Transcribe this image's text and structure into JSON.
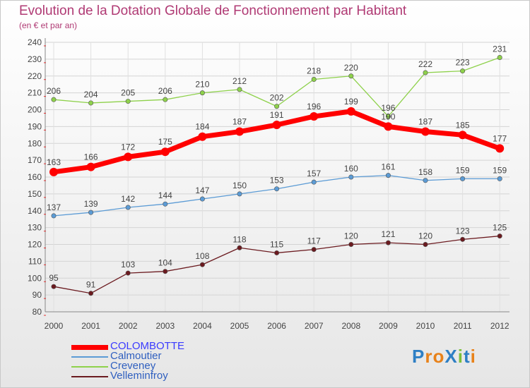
{
  "title": "Evolution de la Dotation Globale de Fonctionnement par Habitant",
  "subtitle": "(en € et par an)",
  "logo": {
    "text": "ProXiti",
    "letter_colors": [
      "#2e7fc4",
      "#e8821a",
      "#e8821a",
      "#2e7fc4",
      "#7bbf3a",
      "#2e7fc4",
      "#e8821a"
    ]
  },
  "chart_data": {
    "type": "line",
    "categories": [
      "2000",
      "2001",
      "2002",
      "2003",
      "2004",
      "2005",
      "2006",
      "2007",
      "2008",
      "2009",
      "2010",
      "2011",
      "2012"
    ],
    "ylim": [
      80,
      240
    ],
    "yticks": [
      80,
      90,
      100,
      110,
      120,
      130,
      140,
      150,
      160,
      170,
      180,
      190,
      200,
      210,
      220,
      230,
      240
    ],
    "grid": "horizontal",
    "legend_position": "bottom-left",
    "series": [
      {
        "name": "COLOMBOTTE",
        "color": "#ff0000",
        "values": [
          163,
          166,
          172,
          175,
          184,
          187,
          191,
          196,
          199,
          190,
          187,
          185,
          177
        ],
        "emphasis": true
      },
      {
        "name": "Calmoutier",
        "color": "#5b9bd5",
        "values": [
          137,
          139,
          142,
          144,
          147,
          150,
          153,
          157,
          160,
          161,
          158,
          159,
          159
        ]
      },
      {
        "name": "Creveney",
        "color": "#8ed14b",
        "values": [
          206,
          204,
          205,
          206,
          210,
          212,
          202,
          218,
          220,
          196,
          222,
          223,
          231
        ]
      },
      {
        "name": "Velleminfroy",
        "color": "#6b1a1f",
        "values": [
          95,
          91,
          103,
          104,
          108,
          118,
          115,
          117,
          120,
          121,
          120,
          123,
          125
        ]
      }
    ]
  }
}
